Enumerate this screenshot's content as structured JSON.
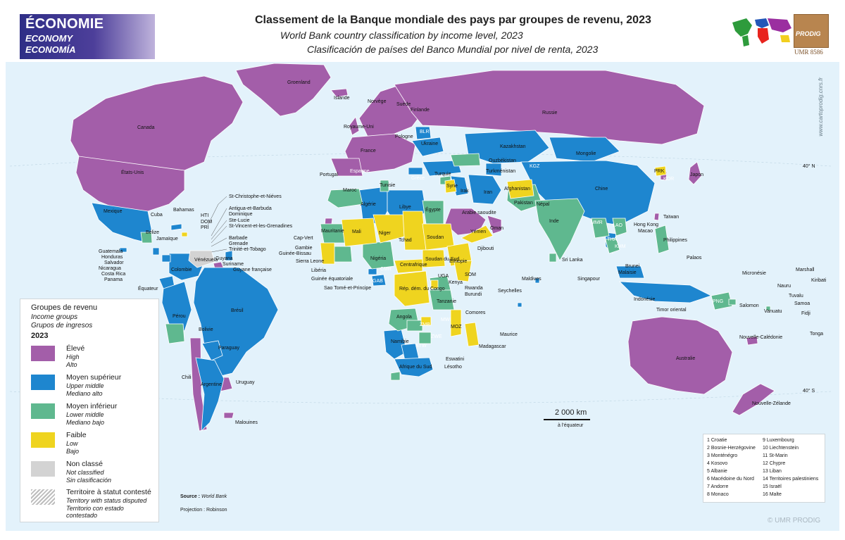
{
  "theme": {
    "fr": "ÉCONOMIE",
    "en": "ECONOMY",
    "es": "ECONOMÍA"
  },
  "title": {
    "fr": "Classement de la Banque mondiale des pays par groupes de revenu, 2023",
    "en": "World Bank country classification by income level, 2023",
    "es": "Clasificación de países del Banco Mundial por nivel de renta, 2023"
  },
  "logos": {
    "institution": "PRODIG",
    "umr": "UMR 8586",
    "side_credit": "www.cartoprodig.cnrs.fr",
    "copyright": "© UMR PRODIG"
  },
  "colors": {
    "ocean": "#e3f2fb",
    "high": "#a35ea9",
    "upper_middle": "#1e86cf",
    "lower_middle": "#5fb88f",
    "low": "#efd41f",
    "not_classified": "#d3d3d3",
    "border": "#ffffff"
  },
  "legend": {
    "title_fr": "Groupes de revenu",
    "title_en": "Income groups",
    "title_es": "Grupos de ingresos",
    "year": "2023",
    "items": [
      {
        "fr": "Élevé",
        "en": "High",
        "es": "Alto",
        "color": "#a35ea9"
      },
      {
        "fr": "Moyen supérieur",
        "en": "Upper middle",
        "es": "Mediano alto",
        "color": "#1e86cf"
      },
      {
        "fr": "Moyen inférieur",
        "en": "Lower middle",
        "es": "Mediano bajo",
        "color": "#5fb88f"
      },
      {
        "fr": "Faible",
        "en": "Low",
        "es": "Bajo",
        "color": "#efd41f"
      },
      {
        "fr": "Non classé",
        "en": "Not classified",
        "es": "Sin clasificación",
        "color": "#d3d3d3"
      },
      {
        "fr": "Territoire à statut contesté",
        "en": "Territory with status disputed",
        "es": "Territorio con estado contestado",
        "color": "hatched"
      }
    ]
  },
  "scale": {
    "label": "2 000 km",
    "note": "à l'équateur"
  },
  "source": {
    "label": "Source :",
    "value": "World Bank"
  },
  "projection": "Projection : Robinson",
  "graticule": {
    "north": "40° N",
    "south": "40° S"
  },
  "inset_list": {
    "col1": [
      "1 Croatie",
      "2 Bosnie-Herzégovine",
      "3 Monténégro",
      "4 Kosovo",
      "5 Albanie",
      "6 Macédoine du Nord",
      "7 Andorre",
      "8 Monaco"
    ],
    "col2": [
      "9 Luxembourg",
      "10 Liechtenstein",
      "11 St-Marin",
      "12 Chypre",
      "13 Liban",
      "14 Territoires palestiniens",
      "15 Israël",
      "16 Malte"
    ]
  },
  "map_labels": {
    "groenland": "Groenland",
    "islande": "Islande",
    "canada": "Canada",
    "etats_unis": "États-Unis",
    "norvege": "Norvège",
    "suede": "Suède",
    "finlande": "Finlande",
    "royaume_uni": "Royaume-Uni",
    "russie": "Russie",
    "pologne": "Pologne",
    "blr": "BLR",
    "ukraine": "Ukraine",
    "france": "France",
    "kazakhstan": "Kazakhstan",
    "mongolie": "Mongolie",
    "portugal": "Portugal",
    "espagne": "Espagne",
    "turquie": "Turquie",
    "ouzbekistan": "Ouzbékistan",
    "turkmenistan": "Turkménistan",
    "kgz": "KGZ",
    "prk": "PRK",
    "kor": "KOR",
    "japon": "Japon",
    "maroc": "Maroc",
    "tunisie": "Tunisie",
    "grece": "Grèce",
    "syrie": "Syrie",
    "irak": "Irak",
    "iran": "Iran",
    "afghanistan": "Afghanistan",
    "chine": "Chine",
    "algerie": "Algérie",
    "libye": "Libye",
    "egypte": "Égypte",
    "pakistan": "Pakistan",
    "nepal": "Népal",
    "arabie_saoudite": "Arabie saoudite",
    "mexique": "Mexique",
    "cuba": "Cuba",
    "bahamas": "Bahamas",
    "hti": "HTI",
    "dom": "DOM",
    "pri": "PRI",
    "taiwan": "Taïwan",
    "inde": "Inde",
    "hong_kong": "Hong Kong",
    "macao": "Macao",
    "mauritanie": "Mauritanie",
    "mali": "Mali",
    "niger": "Niger",
    "tchad": "Tchad",
    "soudan": "Soudan",
    "yemen": "Yémen",
    "oman": "Oman",
    "belize": "Bélize",
    "jamaique": "Jamaïque",
    "cap_vert": "Cap-Vert",
    "philippines": "Philippines",
    "palaos": "Palaos",
    "gambie": "Gambie",
    "guinee_bissau": "Guinée-Bissau",
    "sierra_leone": "Sierra Leone",
    "liberia": "Libéria",
    "nigeria": "Nigéria",
    "centrafrique": "Centrafrique",
    "soudan_du_sud": "Soudan du Sud",
    "ethiopie": "Éthiopie",
    "djibouti": "Djibouti",
    "sri_lanka": "Sri Lanka",
    "guatemala": "Guatemala",
    "honduras": "Honduras",
    "salvador": "Salvador",
    "nicaragua": "Nicaragua",
    "costa_rica": "Costa Rica",
    "panama": "Panama",
    "venezuela": "Vénézuela",
    "guyana": "Guyana",
    "suriname": "Suriname",
    "guyane": "Guyane française",
    "colombie": "Colombie",
    "equateur": "Équateur",
    "bresil": "Brésil",
    "perou": "Pérou",
    "bolivie": "Bolivie",
    "paraguay": "Paraguay",
    "chili": "Chili",
    "argentine": "Argentine",
    "uruguay": "Uruguay",
    "malouines": "Malouines",
    "guinee_eq": "Guinée équatoriale",
    "sao_tome": "Sao Tomé-et-Principe",
    "gab": "GAB",
    "rep_dem_congo": "Rép. dém. du Congo",
    "kenya": "Kenya",
    "rwanda": "Rwanda",
    "burundi": "Burundi",
    "tanzanie": "Tanzanie",
    "angola": "Angola",
    "zmb": "ZMB",
    "mwi": "MWI",
    "moz": "MOZ",
    "zwe": "ZWE",
    "namibie": "Namibie",
    "btw": "BTW",
    "comores": "Comores",
    "madagascar": "Madagascar",
    "maurice": "Maurice",
    "eswatini": "Eswatini",
    "lesotho": "Lésotho",
    "afrique_du_sud": "Afrique du Sud",
    "maldives": "Maldives",
    "seychelles": "Seychelles",
    "malaisie": "Malaisie",
    "brunei": "Brunei",
    "singapour": "Singapour",
    "indonesie": "Indonésie",
    "timor": "Timor oriental",
    "png": "PNG",
    "salomon": "Salomon",
    "vanuatu": "Vanuatu",
    "fidji": "Fidji",
    "nouvelle_caledonie": "Nouvelle-Calédonie",
    "tonga": "Tonga",
    "micronesie": "Micronésie",
    "marshall": "Marshall",
    "nauru": "Nauru",
    "tuvalu": "Tuvalu",
    "samoa": "Samoa",
    "kiribati": "Kiribati",
    "australie": "Australie",
    "nouvelle_zelande": "Nouvelle-Zélande",
    "mmr": "MMR",
    "tha": "THA",
    "khm": "KHM",
    "lao": "LAO",
    "som": "SOM",
    "uga": "UGA",
    "cmr": "CMR",
    "caribbean": [
      "St-Christophe-et-Niéves",
      "Antigua-et-Barbuda",
      "Dominique",
      "Ste-Lucie",
      "St-Vincent-et-les-Grenadines",
      "Barbade",
      "Grenade",
      "Trinité-et-Tobago"
    ]
  }
}
